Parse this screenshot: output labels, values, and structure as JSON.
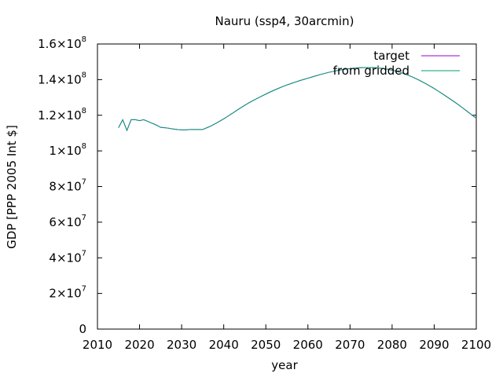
{
  "chart_data": {
    "type": "line",
    "title": "Nauru (ssp4, 30arcmin)",
    "xlabel": "year",
    "ylabel": "GDP [PPP 2005 Int $]",
    "xlim": [
      2010,
      2100
    ],
    "ylim": [
      0,
      160000000
    ],
    "grid": false,
    "legend_position": "top-right",
    "x_ticks": [
      "2010",
      "2020",
      "2030",
      "2040",
      "2050",
      "2060",
      "2070",
      "2080",
      "2090",
      "2100"
    ],
    "y_ticks": [
      {
        "value": 0,
        "mantissa": "0",
        "exponent": ""
      },
      {
        "value": 20000000,
        "mantissa": "2×10",
        "exponent": "7"
      },
      {
        "value": 40000000,
        "mantissa": "4×10",
        "exponent": "7"
      },
      {
        "value": 60000000,
        "mantissa": "6×10",
        "exponent": "7"
      },
      {
        "value": 80000000,
        "mantissa": "8×10",
        "exponent": "7"
      },
      {
        "value": 100000000,
        "mantissa": "1×10",
        "exponent": "8"
      },
      {
        "value": 120000000,
        "mantissa": "1.2×10",
        "exponent": "8"
      },
      {
        "value": 140000000,
        "mantissa": "1.4×10",
        "exponent": "8"
      },
      {
        "value": 160000000,
        "mantissa": "1.6×10",
        "exponent": "8"
      }
    ],
    "x": [
      2015,
      2016,
      2017,
      2018,
      2019,
      2020,
      2021,
      2022,
      2023,
      2024,
      2025,
      2026,
      2027,
      2028,
      2029,
      2030,
      2031,
      2032,
      2033,
      2034,
      2035,
      2036,
      2037,
      2038,
      2039,
      2040,
      2041,
      2042,
      2043,
      2044,
      2045,
      2046,
      2047,
      2048,
      2049,
      2050,
      2051,
      2052,
      2053,
      2054,
      2055,
      2056,
      2057,
      2058,
      2059,
      2060,
      2061,
      2062,
      2063,
      2064,
      2065,
      2066,
      2067,
      2068,
      2069,
      2070,
      2071,
      2072,
      2073,
      2074,
      2075,
      2076,
      2077,
      2078,
      2079,
      2080,
      2081,
      2082,
      2083,
      2084,
      2085,
      2086,
      2087,
      2088,
      2089,
      2090,
      2091,
      2092,
      2093,
      2094,
      2095,
      2096,
      2097,
      2098,
      2099,
      2100
    ],
    "series": [
      {
        "name": "target",
        "color": "#9400d3",
        "values": [
          113000000,
          117500000,
          111500000,
          117500000,
          117500000,
          117000000,
          117500000,
          116500000,
          115500000,
          114500000,
          113200000,
          113000000,
          112700000,
          112300000,
          112000000,
          111800000,
          111800000,
          112000000,
          112000000,
          112000000,
          112000000,
          113000000,
          114000000,
          115300000,
          116600000,
          118000000,
          119500000,
          121000000,
          122600000,
          124100000,
          125600000,
          127000000,
          128300000,
          129500000,
          130700000,
          131900000,
          133000000,
          134100000,
          135100000,
          136100000,
          137000000,
          137800000,
          138600000,
          139400000,
          140100000,
          140800000,
          141500000,
          142200000,
          142900000,
          143500000,
          144100000,
          144600000,
          145100000,
          145500000,
          145900000,
          146200000,
          146400000,
          146600000,
          146700000,
          146800000,
          146800000,
          146700000,
          146500000,
          146200000,
          145800000,
          145300000,
          144700000,
          144000000,
          143200000,
          142300000,
          141300000,
          140200000,
          139000000,
          137700000,
          136400000,
          135000000,
          133500000,
          132000000,
          130400000,
          128800000,
          127200000,
          125500000,
          123700000,
          121900000,
          120100000,
          118300000
        ]
      },
      {
        "name": "from gridded",
        "color": "#009e73",
        "values": [
          113000000,
          117500000,
          111500000,
          117500000,
          117500000,
          117000000,
          117500000,
          116500000,
          115500000,
          114500000,
          113200000,
          113000000,
          112700000,
          112300000,
          112000000,
          111800000,
          111800000,
          112000000,
          112000000,
          112000000,
          112000000,
          113000000,
          114000000,
          115300000,
          116600000,
          118000000,
          119500000,
          121000000,
          122600000,
          124100000,
          125600000,
          127000000,
          128300000,
          129500000,
          130700000,
          131900000,
          133000000,
          134100000,
          135100000,
          136100000,
          137000000,
          137800000,
          138600000,
          139400000,
          140100000,
          140800000,
          141500000,
          142200000,
          142900000,
          143500000,
          144100000,
          144600000,
          145100000,
          145500000,
          145900000,
          146200000,
          146400000,
          146600000,
          146700000,
          146800000,
          146800000,
          146700000,
          146500000,
          146200000,
          145800000,
          145300000,
          144700000,
          144000000,
          143200000,
          142300000,
          141300000,
          140200000,
          139000000,
          137700000,
          136400000,
          135000000,
          133500000,
          132000000,
          130400000,
          128800000,
          127200000,
          125500000,
          123700000,
          121900000,
          120100000,
          118300000
        ]
      }
    ]
  }
}
